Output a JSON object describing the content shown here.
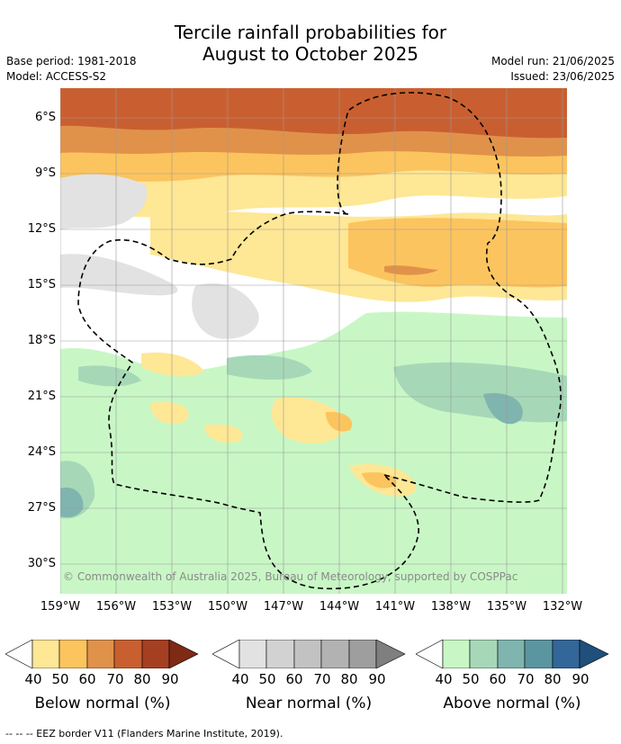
{
  "title_line1": "Tercile rainfall probabilities for",
  "title_line2": "August to October 2025",
  "meta_left": {
    "base_period": "Base period: 1981-2018",
    "model": "Model: ACCESS-S2"
  },
  "meta_right": {
    "model_run": "Model run: 21/06/2025",
    "issued": "Issued: 23/06/2025"
  },
  "map": {
    "lat_labels": [
      "6°S",
      "9°S",
      "12°S",
      "15°S",
      "18°S",
      "21°S",
      "24°S",
      "27°S",
      "30°S"
    ],
    "lon_labels": [
      "159°W",
      "156°W",
      "153°W",
      "150°W",
      "147°W",
      "144°W",
      "141°W",
      "138°W",
      "135°W",
      "132°W"
    ],
    "copyright": "© Commonwealth of Australia 2025, Bureau of Meteorology, supported by COSPPac",
    "eez_style": "dashed-black"
  },
  "colorbars": [
    {
      "label": "Below normal (%)",
      "ticks": [
        "40",
        "50",
        "60",
        "70",
        "80",
        "90"
      ],
      "colors": [
        "#ffffff",
        "#fee795",
        "#fcc45e",
        "#e0924a",
        "#c95f30",
        "#a53f22",
        "#7e2a14"
      ]
    },
    {
      "label": "Near normal (%)",
      "ticks": [
        "40",
        "50",
        "60",
        "70",
        "80",
        "90"
      ],
      "colors": [
        "#ffffff",
        "#e2e2e2",
        "#d2d2d2",
        "#c2c2c2",
        "#b2b2b2",
        "#9e9e9e",
        "#7f7f7f"
      ]
    },
    {
      "label": "Above normal (%)",
      "ticks": [
        "40",
        "50",
        "60",
        "70",
        "80",
        "90"
      ],
      "colors": [
        "#ffffff",
        "#c8f7c5",
        "#a6d8b8",
        "#7fb5ae",
        "#5b95a0",
        "#336699",
        "#1f4f7a"
      ]
    }
  ],
  "footer": "--  --  -- EEZ border V11 (Flanders Marine Institute, 2019)."
}
